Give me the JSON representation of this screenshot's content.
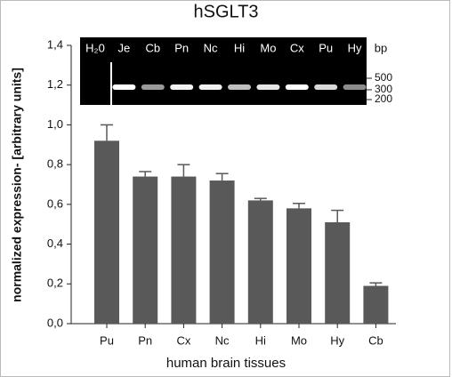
{
  "chart_data": {
    "type": "bar",
    "title": "hSGLT3",
    "y_label": "normalized expression- [arbitrary units]",
    "x_label": "human brain tissues",
    "categories": [
      "Pu",
      "Pn",
      "Cx",
      "Nc",
      "Hi",
      "Mo",
      "Hy",
      "Cb"
    ],
    "values": [
      0.92,
      0.74,
      0.74,
      0.72,
      0.62,
      0.58,
      0.51,
      0.19
    ],
    "errors": [
      0.08,
      0.025,
      0.06,
      0.035,
      0.01,
      0.025,
      0.06,
      0.015
    ],
    "color": "#595959",
    "ylim": [
      0,
      1.4
    ],
    "yticks": [
      {
        "value": 0,
        "label": "0,0"
      },
      {
        "value": 0.2,
        "label": "0,2"
      },
      {
        "value": 0.4,
        "label": "0,4"
      },
      {
        "value": 0.6,
        "label": "0,6"
      },
      {
        "value": 0.8,
        "label": "0,8"
      },
      {
        "value": 1.0,
        "label": "1,0"
      },
      {
        "value": 1.2,
        "label": "1,2"
      },
      {
        "value": 1.4,
        "label": "1,4"
      }
    ],
    "grid": false
  },
  "gel": {
    "lanes": [
      "H₂0",
      "Je",
      "Cb",
      "Pn",
      "Nc",
      "Hi",
      "Mo",
      "Cx",
      "Pu",
      "Hy"
    ],
    "unit": "bp",
    "markers": [
      500,
      300,
      200
    ]
  }
}
